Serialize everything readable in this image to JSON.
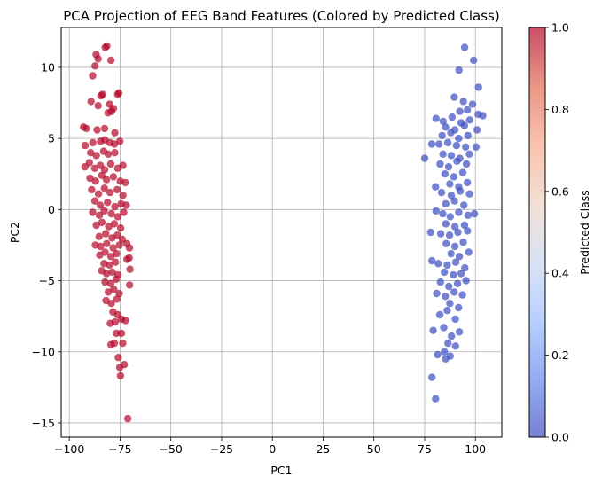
{
  "chart_data": {
    "type": "scatter",
    "title": "PCA Projection of EEG Band Features (Colored by Predicted Class)",
    "xlabel": "PC1",
    "ylabel": "PC2",
    "xlim": [
      -104,
      113
    ],
    "ylim": [
      -16,
      12.8
    ],
    "xticks": [
      -100,
      -75,
      -50,
      -25,
      0,
      25,
      50,
      75,
      100
    ],
    "yticks": [
      -15,
      -10,
      -5,
      0,
      5,
      10
    ],
    "grid": true,
    "point_alpha": 0.7,
    "colorbar": {
      "label": "Predicted Class",
      "range": [
        0,
        1
      ],
      "ticks": [
        0.0,
        0.2,
        0.4,
        0.6,
        0.8,
        1.0
      ],
      "tick_labels": [
        "0.0",
        "0.2",
        "0.4",
        "0.6",
        "0.8",
        "1.0"
      ],
      "colormap": "coolwarm",
      "colormap_stops": [
        "#3b4cc0",
        "#6788ee",
        "#9abbff",
        "#c9d7f0",
        "#edd1c2",
        "#f7a889",
        "#e26952",
        "#b40426"
      ]
    },
    "series": [
      {
        "class": 1,
        "color": "#b40426",
        "points": [
          [
            -82.3,
            11.4
          ],
          [
            -81.5,
            11.5
          ],
          [
            -79.5,
            10.5
          ],
          [
            -86.8,
            10.9
          ],
          [
            -87.3,
            10.1
          ],
          [
            -85.8,
            10.6
          ],
          [
            -88.5,
            9.4
          ],
          [
            -84.4,
            8.0
          ],
          [
            -83.6,
            8.1
          ],
          [
            -75.6,
            8.2
          ],
          [
            -76.2,
            8.1
          ],
          [
            -89.3,
            7.6
          ],
          [
            -85.8,
            7.3
          ],
          [
            -80.1,
            7.4
          ],
          [
            -79.2,
            6.9
          ],
          [
            -81.0,
            6.8
          ],
          [
            -78.3,
            7.1
          ],
          [
            -93.0,
            5.8
          ],
          [
            -91.6,
            5.7
          ],
          [
            -86.3,
            5.6
          ],
          [
            -82.6,
            5.7
          ],
          [
            -77.6,
            5.4
          ],
          [
            -92.2,
            4.5
          ],
          [
            -88.4,
            4.7
          ],
          [
            -84.6,
            4.8
          ],
          [
            -82.5,
            4.9
          ],
          [
            -80.0,
            4.7
          ],
          [
            -77.8,
            4.6
          ],
          [
            -75.1,
            4.8
          ],
          [
            -89.5,
            4.0
          ],
          [
            -86.7,
            3.8
          ],
          [
            -83.1,
            4.1
          ],
          [
            -80.8,
            3.9
          ],
          [
            -77.6,
            4.0
          ],
          [
            -92.3,
            3.0
          ],
          [
            -90.1,
            3.3
          ],
          [
            -87.5,
            2.9
          ],
          [
            -84.7,
            3.1
          ],
          [
            -82.6,
            2.8
          ],
          [
            -79.6,
            3.2
          ],
          [
            -76.2,
            2.9
          ],
          [
            -73.6,
            3.1
          ],
          [
            -89.8,
            2.2
          ],
          [
            -87.1,
            2.0
          ],
          [
            -84.0,
            2.4
          ],
          [
            -81.7,
            2.1
          ],
          [
            -78.3,
            2.3
          ],
          [
            -74.9,
            2.0
          ],
          [
            -72.4,
            1.9
          ],
          [
            -89.0,
            1.4
          ],
          [
            -85.6,
            1.1
          ],
          [
            -82.7,
            1.5
          ],
          [
            -79.9,
            1.2
          ],
          [
            -76.4,
            1.4
          ],
          [
            -73.6,
            1.0
          ],
          [
            -87.4,
            0.6
          ],
          [
            -84.8,
            0.3
          ],
          [
            -81.2,
            0.5
          ],
          [
            -77.6,
            0.2
          ],
          [
            -74.5,
            0.4
          ],
          [
            -72.0,
            0.3
          ],
          [
            -88.5,
            -0.2
          ],
          [
            -85.2,
            -0.4
          ],
          [
            -82.8,
            -0.1
          ],
          [
            -79.3,
            -0.3
          ],
          [
            -76.1,
            -0.5
          ],
          [
            -73.2,
            -0.2
          ],
          [
            -86.7,
            -1.1
          ],
          [
            -83.9,
            -0.9
          ],
          [
            -80.6,
            -1.2
          ],
          [
            -77.8,
            -1.0
          ],
          [
            -74.7,
            -1.3
          ],
          [
            -85.3,
            -1.9
          ],
          [
            -82.1,
            -1.7
          ],
          [
            -79.0,
            -2.0
          ],
          [
            -76.3,
            -1.8
          ],
          [
            -73.9,
            -2.1
          ],
          [
            -87.2,
            -2.5
          ],
          [
            -84.6,
            -2.6
          ],
          [
            -81.6,
            -2.4
          ],
          [
            -78.4,
            -2.7
          ],
          [
            -75.3,
            -2.5
          ],
          [
            -71.7,
            -2.4
          ],
          [
            -70.4,
            -2.7
          ],
          [
            -85.0,
            -3.2
          ],
          [
            -82.4,
            -3.0
          ],
          [
            -79.5,
            -3.3
          ],
          [
            -76.7,
            -3.1
          ],
          [
            -82.9,
            -3.8
          ],
          [
            -80.2,
            -3.9
          ],
          [
            -77.3,
            -3.7
          ],
          [
            -71.6,
            -3.5
          ],
          [
            -70.5,
            -3.4
          ],
          [
            -84.1,
            -4.3
          ],
          [
            -81.7,
            -4.5
          ],
          [
            -78.8,
            -4.4
          ],
          [
            -76.0,
            -4.6
          ],
          [
            -70.1,
            -4.2
          ],
          [
            -82.4,
            -5.1
          ],
          [
            -79.6,
            -5.2
          ],
          [
            -76.9,
            -4.9
          ],
          [
            -80.8,
            -5.8
          ],
          [
            -78.1,
            -5.6
          ],
          [
            -75.4,
            -5.9
          ],
          [
            -70.3,
            -5.3
          ],
          [
            -81.9,
            -6.4
          ],
          [
            -79.3,
            -6.6
          ],
          [
            -76.6,
            -6.3
          ],
          [
            -78.5,
            -7.2
          ],
          [
            -76.1,
            -7.4
          ],
          [
            -79.8,
            -8.0
          ],
          [
            -77.4,
            -7.9
          ],
          [
            -74.3,
            -7.7
          ],
          [
            -72.3,
            -7.8
          ],
          [
            -76.8,
            -8.7
          ],
          [
            -74.3,
            -8.7
          ],
          [
            -79.5,
            -9.5
          ],
          [
            -77.8,
            -9.4
          ],
          [
            -73.7,
            -9.4
          ],
          [
            -75.9,
            -10.4
          ],
          [
            -75.2,
            -11.1
          ],
          [
            -72.9,
            -10.9
          ],
          [
            -74.8,
            -11.7
          ],
          [
            -71.2,
            -14.7
          ]
        ]
      },
      {
        "class": 0,
        "color": "#3b4cc0",
        "points": [
          [
            94.7,
            11.4
          ],
          [
            99.1,
            10.5
          ],
          [
            91.9,
            9.8
          ],
          [
            101.5,
            8.6
          ],
          [
            89.6,
            7.9
          ],
          [
            94.1,
            7.6
          ],
          [
            98.6,
            7.4
          ],
          [
            92.3,
            6.9
          ],
          [
            96.0,
            7.0
          ],
          [
            103.6,
            6.6
          ],
          [
            101.4,
            6.7
          ],
          [
            80.6,
            6.4
          ],
          [
            84.1,
            6.2
          ],
          [
            88.5,
            6.5
          ],
          [
            92.9,
            6.1
          ],
          [
            97.2,
            6.3
          ],
          [
            85.3,
            5.8
          ],
          [
            89.9,
            5.6
          ],
          [
            94.6,
            5.9
          ],
          [
            100.8,
            5.6
          ],
          [
            83.6,
            5.2
          ],
          [
            87.9,
            5.4
          ],
          [
            91.8,
            5.0
          ],
          [
            96.3,
            5.2
          ],
          [
            78.5,
            4.6
          ],
          [
            82.1,
            4.6
          ],
          [
            86.4,
            4.7
          ],
          [
            90.7,
            4.5
          ],
          [
            95.2,
            4.4
          ],
          [
            100.3,
            4.4
          ],
          [
            84.0,
            3.9
          ],
          [
            88.1,
            3.8
          ],
          [
            92.3,
            3.6
          ],
          [
            97.0,
            3.9
          ],
          [
            75.0,
            3.6
          ],
          [
            82.6,
            3.2
          ],
          [
            86.8,
            3.0
          ],
          [
            90.9,
            3.4
          ],
          [
            95.6,
            3.2
          ],
          [
            85.0,
            2.5
          ],
          [
            89.4,
            2.3
          ],
          [
            93.8,
            2.6
          ],
          [
            87.4,
            1.8
          ],
          [
            91.8,
            1.6
          ],
          [
            96.0,
            1.9
          ],
          [
            80.4,
            1.6
          ],
          [
            83.3,
            1.2
          ],
          [
            88.1,
            1.0
          ],
          [
            92.5,
            1.3
          ],
          [
            97.1,
            1.1
          ],
          [
            85.4,
            0.4
          ],
          [
            89.7,
            0.6
          ],
          [
            94.3,
            0.3
          ],
          [
            80.6,
            -0.1
          ],
          [
            83.9,
            -0.3
          ],
          [
            87.6,
            -0.5
          ],
          [
            91.8,
            -0.2
          ],
          [
            96.4,
            -0.4
          ],
          [
            99.5,
            -0.3
          ],
          [
            85.4,
            -1.0
          ],
          [
            89.9,
            -1.2
          ],
          [
            94.6,
            -1.1
          ],
          [
            78.0,
            -1.6
          ],
          [
            82.9,
            -1.7
          ],
          [
            87.3,
            -1.8
          ],
          [
            91.4,
            -1.6
          ],
          [
            96.1,
            -1.5
          ],
          [
            85.6,
            -2.4
          ],
          [
            89.9,
            -2.6
          ],
          [
            94.0,
            -2.3
          ],
          [
            88.0,
            -3.1
          ],
          [
            92.1,
            -3.3
          ],
          [
            96.7,
            -3.0
          ],
          [
            78.6,
            -3.6
          ],
          [
            81.7,
            -3.8
          ],
          [
            86.1,
            -3.9
          ],
          [
            90.3,
            -3.7
          ],
          [
            94.8,
            -4.1
          ],
          [
            84.7,
            -4.4
          ],
          [
            89.1,
            -4.6
          ],
          [
            93.0,
            -4.5
          ],
          [
            82.8,
            -5.1
          ],
          [
            86.9,
            -5.4
          ],
          [
            91.2,
            -5.2
          ],
          [
            95.4,
            -5.0
          ],
          [
            80.9,
            -5.9
          ],
          [
            85.2,
            -6.1
          ],
          [
            89.5,
            -5.8
          ],
          [
            93.6,
            -6.0
          ],
          [
            87.4,
            -6.6
          ],
          [
            91.7,
            -6.9
          ],
          [
            82.5,
            -7.4
          ],
          [
            86.1,
            -7.1
          ],
          [
            90.1,
            -7.7
          ],
          [
            79.2,
            -8.5
          ],
          [
            84.4,
            -8.3
          ],
          [
            88.2,
            -8.9
          ],
          [
            92.1,
            -8.6
          ],
          [
            86.5,
            -9.4
          ],
          [
            90.2,
            -9.6
          ],
          [
            81.4,
            -10.2
          ],
          [
            84.7,
            -10.0
          ],
          [
            87.6,
            -10.3
          ],
          [
            85.3,
            -10.5
          ],
          [
            78.6,
            -11.8
          ],
          [
            80.4,
            -13.3
          ]
        ]
      }
    ]
  }
}
